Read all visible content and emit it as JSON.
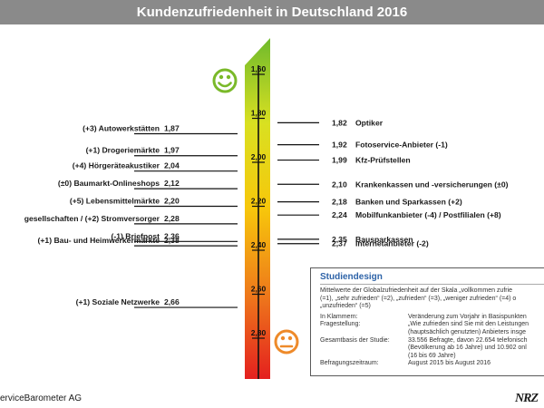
{
  "title": "Kundenzufriedenheit in Deutschland 2016",
  "chart_data": {
    "type": "scale",
    "title": "Kundenzufriedenheit in Deutschland 2016",
    "ylim": [
      1.55,
      2.9
    ],
    "scale_ticks": [
      "1,60",
      "1,80",
      "2,00",
      "2,20",
      "2,40",
      "2,60",
      "2,80"
    ],
    "scale_tick_values": [
      1.6,
      1.8,
      2.0,
      2.2,
      2.4,
      2.6,
      2.8
    ],
    "gradient_colors": [
      "#6fba2c",
      "#d9e021",
      "#f7c70b",
      "#ee7a1b",
      "#e4201f"
    ],
    "left_items": [
      {
        "label": "(+3) Autowerkstätten",
        "value_label": "1,87",
        "value": 1.87
      },
      {
        "label": "(+1) Drogeriemärkte",
        "value_label": "1,97",
        "value": 1.97
      },
      {
        "label": "(+4) Hörgeräteakustiker",
        "value_label": "2,04",
        "value": 2.04
      },
      {
        "label": "(±0) Baumarkt-Onlineshops",
        "value_label": "2,12",
        "value": 2.12
      },
      {
        "label": "(+5) Lebensmittelmärkte",
        "value_label": "2,20",
        "value": 2.2
      },
      {
        "label": "gesellschaften / (+2) Stromversorger",
        "value_label": "2,28",
        "value": 2.28
      },
      {
        "label": "(-1) Briefpost",
        "value_label": "2,36",
        "value": 2.36
      },
      {
        "label": "(+1) Bau- und Heimwerkermärkte",
        "value_label": "2,38",
        "value": 2.38
      },
      {
        "label": "(+1) Soziale Netzwerke",
        "value_label": "2,66",
        "value": 2.66
      }
    ],
    "right_items": [
      {
        "label": "Optiker",
        "value_label": "1,82",
        "value": 1.82
      },
      {
        "label": "Fotoservice-Anbieter (-1)",
        "value_label": "1,92",
        "value": 1.92
      },
      {
        "label": "Kfz-Prüfstellen",
        "value_label": "1,99",
        "value": 1.99
      },
      {
        "label": "Krankenkassen und -versicherungen (±0)",
        "value_label": "2,10",
        "value": 2.1
      },
      {
        "label": "Banken und Sparkassen (+2)",
        "value_label": "2,18",
        "value": 2.18
      },
      {
        "label": "Mobilfunkanbieter (-4) / Postfilialen (+8)",
        "value_label": "2,24",
        "value": 2.24
      },
      {
        "label": "Bausparkassen",
        "value_label": "2,35",
        "value": 2.35
      },
      {
        "label": "Internetanbieter (-2)",
        "value_label": "2,37",
        "value": 2.37
      }
    ]
  },
  "icons": {
    "happy": "happy-face-icon",
    "sad": "sad-face-icon",
    "happy_color": "#7ab929",
    "sad_color": "#ee8a2a"
  },
  "study": {
    "title": "Studiendesign",
    "description_lines": [
      "Mittelwerte der Globalzufriedenheit auf der Skala „vollkommen zufrie",
      "(=1), „sehr zufrieden“ (=2), „zufrieden“ (=3), „weniger zufrieden“ (=4) o",
      "„unzufrieden“ (=5)"
    ],
    "rows": [
      {
        "key": "In Klammern:",
        "lines": [
          "Veränderung zum Vorjahr in Basispunkten"
        ]
      },
      {
        "key": "Fragestellung:",
        "lines": [
          "„Wie zufrieden sind Sie mit den Leistungen",
          "(hauptsächlich genutzten) Anbieters insge"
        ]
      },
      {
        "key": "Gesamtbasis der Studie:",
        "lines": [
          "33.556 Befragte, davon 22.654 telefonisch",
          "(Bevölkerung ab 16 Jahre) und 10.902 onl",
          "(16 bis 69 Jahre)"
        ]
      },
      {
        "key": "Befragungszeitraum:",
        "lines": [
          "August 2015 bis August 2016"
        ]
      }
    ]
  },
  "source": "erviceBarometer AG",
  "logo": "NRZ"
}
